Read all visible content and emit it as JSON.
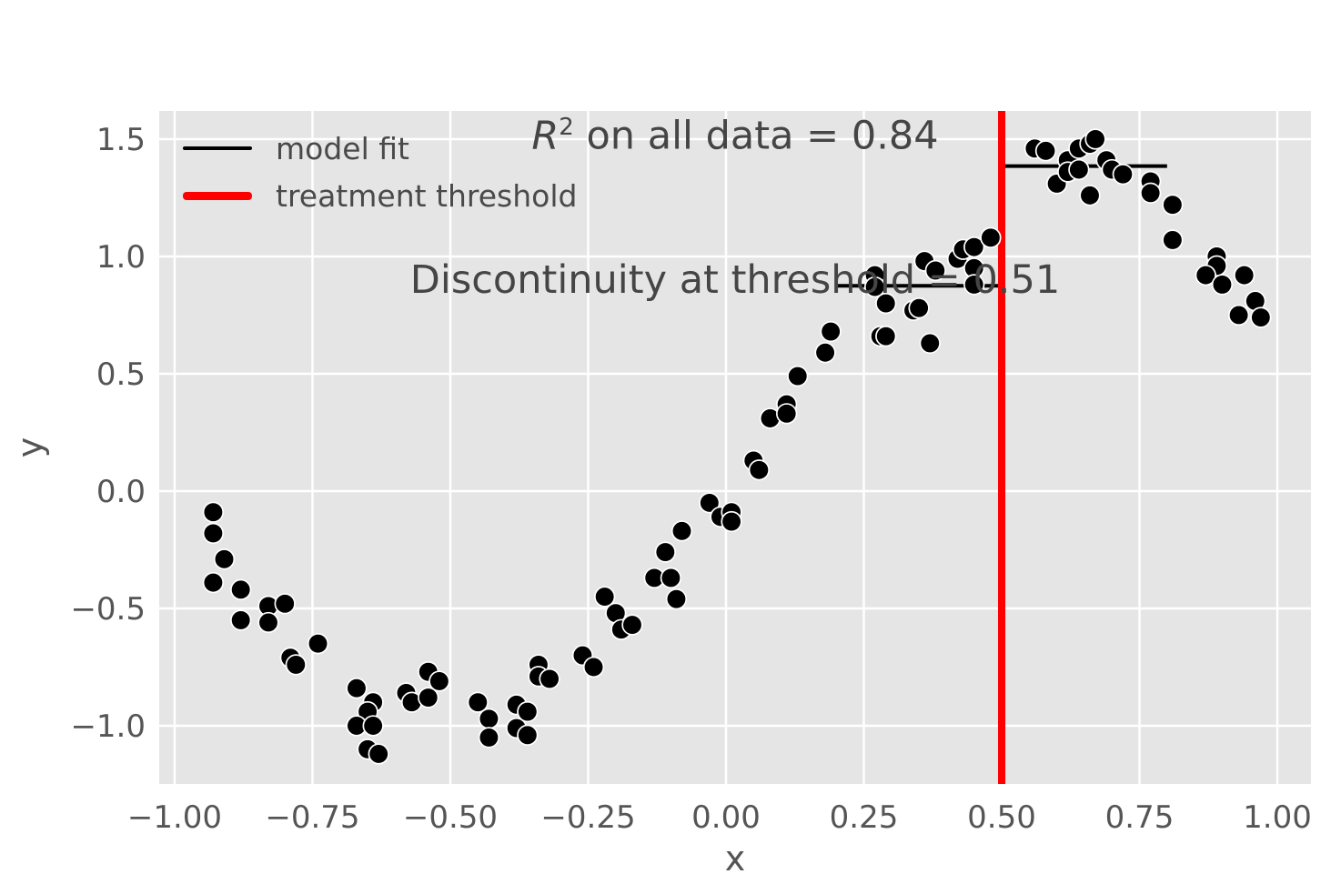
{
  "title": {
    "r_symbol": "R",
    "exponent": "2",
    "line1_rest": " on all data = 0.84",
    "line2": "Discontinuity at threshold = 0.51"
  },
  "legend": {
    "items": [
      {
        "label": "model fit",
        "color": "#000000",
        "thickness": 4
      },
      {
        "label": "treatment threshold",
        "color": "#ff0000",
        "thickness": 9
      }
    ]
  },
  "colors": {
    "figure_bg": "#ffffff",
    "axes_bg": "#e5e5e5",
    "grid": "#ffffff",
    "text": "#555555",
    "point_fill": "#000000",
    "point_edge": "#ffffff",
    "threshold_line": "#ff0000",
    "fit_line": "#000000"
  },
  "chart_data": {
    "type": "scatter",
    "title": "R^2 on all data = 0.84\nDiscontinuity at threshold = 0.51",
    "xlabel": "x",
    "ylabel": "y",
    "r_squared": 0.84,
    "discontinuity": 0.51,
    "threshold_x": 0.5,
    "grid": true,
    "legend_position": "upper left",
    "legend_entries": [
      "model fit",
      "treatment threshold"
    ],
    "xlim": [
      -1.028,
      1.061
    ],
    "ylim": [
      -1.248,
      1.62
    ],
    "xticks": {
      "values": [
        -1.0,
        -0.75,
        -0.5,
        -0.25,
        0.0,
        0.25,
        0.5,
        0.75,
        1.0
      ],
      "labels": [
        "−1.00",
        "−0.75",
        "−0.50",
        "−0.25",
        "0.00",
        "0.25",
        "0.50",
        "0.75",
        "1.00"
      ]
    },
    "yticks": {
      "values": [
        -1.0,
        -0.5,
        0.0,
        0.5,
        1.0,
        1.5
      ],
      "labels": [
        "−1.0",
        "−0.5",
        "0.0",
        "0.5",
        "1.0",
        "1.5"
      ]
    },
    "fit_segments": [
      {
        "x0": 0.2,
        "x1": 0.5,
        "y": 0.875
      },
      {
        "x0": 0.5,
        "x1": 0.8,
        "y": 1.385
      }
    ],
    "points": [
      [
        -0.93,
        -0.09
      ],
      [
        -0.93,
        -0.18
      ],
      [
        -0.91,
        -0.29
      ],
      [
        -0.93,
        -0.39
      ],
      [
        -0.88,
        -0.42
      ],
      [
        -0.83,
        -0.49
      ],
      [
        -0.8,
        -0.48
      ],
      [
        -0.88,
        -0.55
      ],
      [
        -0.83,
        -0.56
      ],
      [
        -0.74,
        -0.65
      ],
      [
        -0.79,
        -0.71
      ],
      [
        -0.78,
        -0.74
      ],
      [
        -0.67,
        -0.84
      ],
      [
        -0.64,
        -0.9
      ],
      [
        -0.65,
        -0.94
      ],
      [
        -0.67,
        -1.0
      ],
      [
        -0.64,
        -1.0
      ],
      [
        -0.65,
        -1.1
      ],
      [
        -0.63,
        -1.12
      ],
      [
        -0.58,
        -0.86
      ],
      [
        -0.57,
        -0.9
      ],
      [
        -0.54,
        -0.88
      ],
      [
        -0.54,
        -0.77
      ],
      [
        -0.52,
        -0.81
      ],
      [
        -0.45,
        -0.9
      ],
      [
        -0.43,
        -0.97
      ],
      [
        -0.43,
        -1.05
      ],
      [
        -0.38,
        -0.91
      ],
      [
        -0.36,
        -0.94
      ],
      [
        -0.38,
        -1.01
      ],
      [
        -0.36,
        -1.04
      ],
      [
        -0.34,
        -0.74
      ],
      [
        -0.34,
        -0.79
      ],
      [
        -0.32,
        -0.8
      ],
      [
        -0.26,
        -0.7
      ],
      [
        -0.24,
        -0.75
      ],
      [
        -0.22,
        -0.45
      ],
      [
        -0.2,
        -0.52
      ],
      [
        -0.19,
        -0.59
      ],
      [
        -0.17,
        -0.57
      ],
      [
        -0.13,
        -0.37
      ],
      [
        -0.1,
        -0.37
      ],
      [
        -0.09,
        -0.46
      ],
      [
        -0.11,
        -0.26
      ],
      [
        -0.08,
        -0.17
      ],
      [
        -0.03,
        -0.05
      ],
      [
        -0.01,
        -0.11
      ],
      [
        0.01,
        -0.09
      ],
      [
        0.01,
        -0.13
      ],
      [
        0.05,
        0.13
      ],
      [
        0.06,
        0.09
      ],
      [
        0.08,
        0.31
      ],
      [
        0.11,
        0.37
      ],
      [
        0.11,
        0.33
      ],
      [
        0.13,
        0.49
      ],
      [
        0.18,
        0.59
      ],
      [
        0.19,
        0.68
      ],
      [
        0.27,
        0.92
      ],
      [
        0.27,
        0.87
      ],
      [
        0.29,
        0.8
      ],
      [
        0.28,
        0.66
      ],
      [
        0.29,
        0.66
      ],
      [
        0.34,
        0.77
      ],
      [
        0.35,
        0.78
      ],
      [
        0.36,
        0.98
      ],
      [
        0.37,
        0.63
      ],
      [
        0.38,
        0.94
      ],
      [
        0.42,
        0.99
      ],
      [
        0.43,
        1.03
      ],
      [
        0.45,
        1.04
      ],
      [
        0.45,
        0.95
      ],
      [
        0.45,
        0.88
      ],
      [
        0.48,
        1.08
      ],
      [
        0.56,
        1.46
      ],
      [
        0.58,
        1.45
      ],
      [
        0.6,
        1.31
      ],
      [
        0.62,
        1.41
      ],
      [
        0.62,
        1.36
      ],
      [
        0.64,
        1.37
      ],
      [
        0.64,
        1.46
      ],
      [
        0.66,
        1.48
      ],
      [
        0.67,
        1.5
      ],
      [
        0.66,
        1.26
      ],
      [
        0.69,
        1.41
      ],
      [
        0.7,
        1.37
      ],
      [
        0.72,
        1.35
      ],
      [
        0.77,
        1.32
      ],
      [
        0.77,
        1.27
      ],
      [
        0.81,
        1.22
      ],
      [
        0.81,
        1.07
      ],
      [
        0.89,
        1.0
      ],
      [
        0.89,
        0.96
      ],
      [
        0.87,
        0.92
      ],
      [
        0.9,
        0.88
      ],
      [
        0.94,
        0.92
      ],
      [
        0.93,
        0.75
      ],
      [
        0.96,
        0.81
      ],
      [
        0.97,
        0.74
      ]
    ]
  }
}
